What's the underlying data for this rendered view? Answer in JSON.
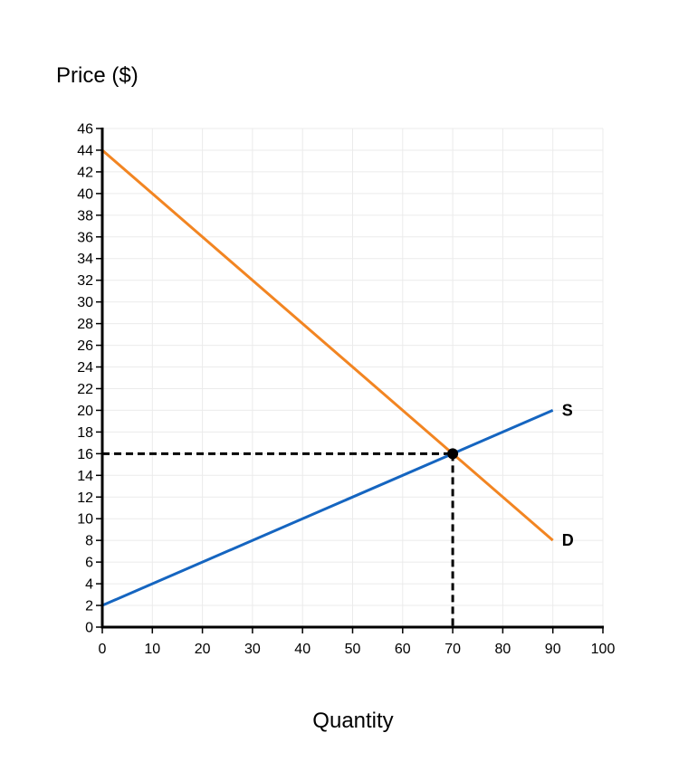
{
  "chart_data": {
    "type": "line",
    "xlabel": "Quantity",
    "ylabel": "Price ($)",
    "xlim": [
      0,
      100
    ],
    "ylim": [
      0,
      46
    ],
    "x_ticks": [
      0,
      10,
      20,
      30,
      40,
      50,
      60,
      70,
      80,
      90,
      100
    ],
    "y_ticks": [
      0,
      2,
      4,
      6,
      8,
      10,
      12,
      14,
      16,
      18,
      20,
      22,
      24,
      26,
      28,
      30,
      32,
      34,
      36,
      38,
      40,
      42,
      44,
      46
    ],
    "grid": true,
    "series": [
      {
        "name": "S",
        "color": "#1565c0",
        "points": [
          [
            0,
            2
          ],
          [
            90,
            20
          ]
        ]
      },
      {
        "name": "D",
        "color": "#f28522",
        "points": [
          [
            0,
            44
          ],
          [
            90,
            8
          ]
        ]
      }
    ],
    "equilibrium": {
      "x": 70,
      "y": 16,
      "color": "#000000"
    }
  }
}
